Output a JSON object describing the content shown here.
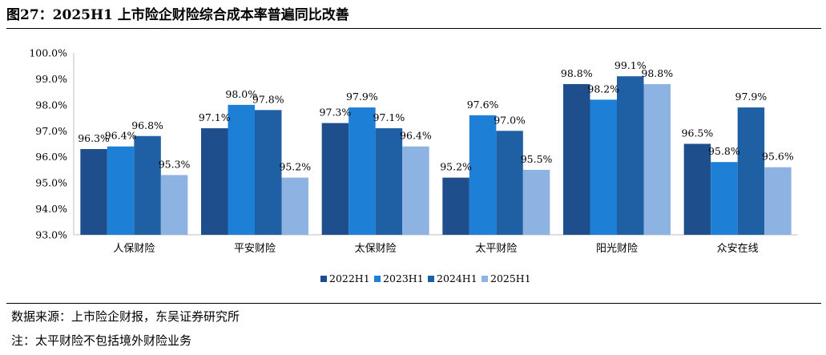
{
  "header": {
    "title": "图27：2025H1 上市险企财险综合成本率普遍同比改善"
  },
  "footer": {
    "source": "数据来源：上市险企财报，东吴证券研究所",
    "note": "注：太平财险不包括境外财险业务"
  },
  "chart_data": {
    "type": "bar",
    "title": "",
    "xlabel": "",
    "ylabel": "",
    "categories": [
      "人保财险",
      "平安财险",
      "太保财险",
      "太平财险",
      "阳光财险",
      "众安在线"
    ],
    "ylim": [
      93.0,
      100.0
    ],
    "yticks": [
      "93.0%",
      "94.0%",
      "95.0%",
      "96.0%",
      "97.0%",
      "98.0%",
      "99.0%",
      "100.0%"
    ],
    "grid": false,
    "legend_position": "bottom",
    "series": [
      {
        "name": "2022H1",
        "color": "#1F4E8C",
        "values": [
          96.3,
          97.1,
          97.3,
          95.2,
          98.8,
          96.5
        ],
        "labels": [
          "96.3%",
          "97.1%",
          "97.3%",
          "95.2%",
          "98.8%",
          "96.5%"
        ]
      },
      {
        "name": "2023H1",
        "color": "#1E7FD6",
        "values": [
          96.4,
          98.0,
          97.9,
          97.6,
          98.2,
          95.8
        ],
        "labels": [
          "96.4%",
          "98.0%",
          "97.9%",
          "97.6%",
          "98.2%",
          "95.8%"
        ]
      },
      {
        "name": "2024H1",
        "color": "#1F5FA3",
        "values": [
          96.8,
          97.8,
          97.1,
          97.0,
          99.1,
          97.9
        ],
        "labels": [
          "96.8%",
          "97.8%",
          "97.1%",
          "97.0%",
          "99.1%",
          "97.9%"
        ]
      },
      {
        "name": "2025H1",
        "color": "#8DB3E2",
        "values": [
          95.3,
          95.2,
          96.4,
          95.5,
          98.8,
          95.6
        ],
        "labels": [
          "95.3%",
          "95.2%",
          "96.4%",
          "95.5%",
          "98.8%",
          "95.6%"
        ]
      }
    ]
  }
}
